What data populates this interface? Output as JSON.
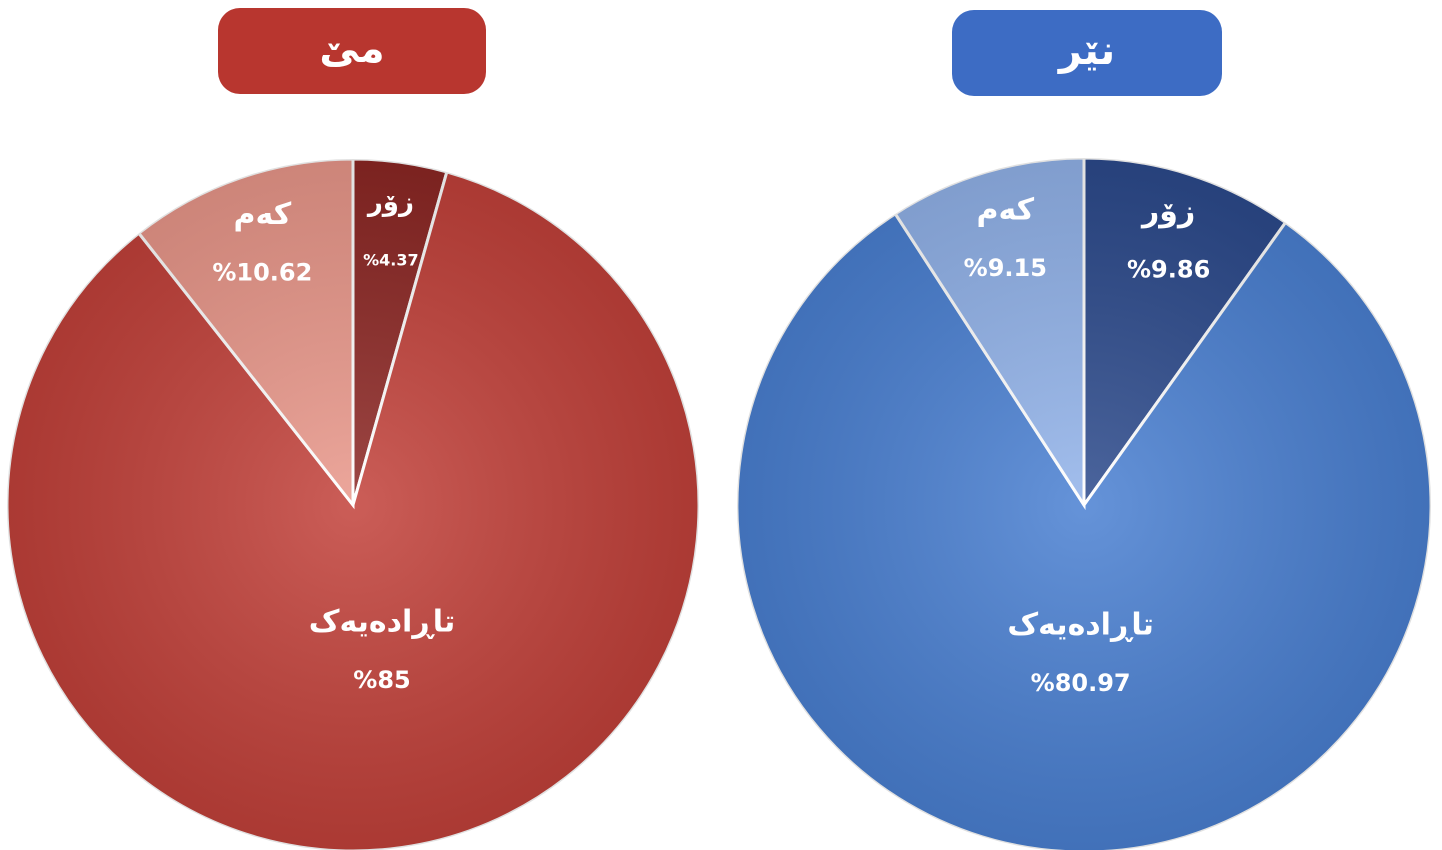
{
  "chart_data": [
    {
      "type": "pie",
      "title": "مێ",
      "categories": [
        "زۆر",
        "تاڕادەیەک",
        "کەم"
      ],
      "values": [
        4.37,
        85,
        10.62
      ],
      "value_labels": [
        "%4.37",
        "%85",
        "%10.62"
      ],
      "colors": [
        "#8c2724",
        "#c2413a",
        "#e9978a"
      ],
      "title_color": "#b8362f"
    },
    {
      "type": "pie",
      "title": "نێر",
      "categories": [
        "زۆر",
        "تاڕادەیەک",
        "کەم"
      ],
      "values": [
        9.86,
        80.97,
        9.15
      ],
      "value_labels": [
        "%9.86",
        "%80.97",
        "%9.15"
      ],
      "colors": [
        "#2c4a8c",
        "#4a80d2",
        "#92b3ea"
      ],
      "title_color": "#3d6cc4"
    }
  ]
}
